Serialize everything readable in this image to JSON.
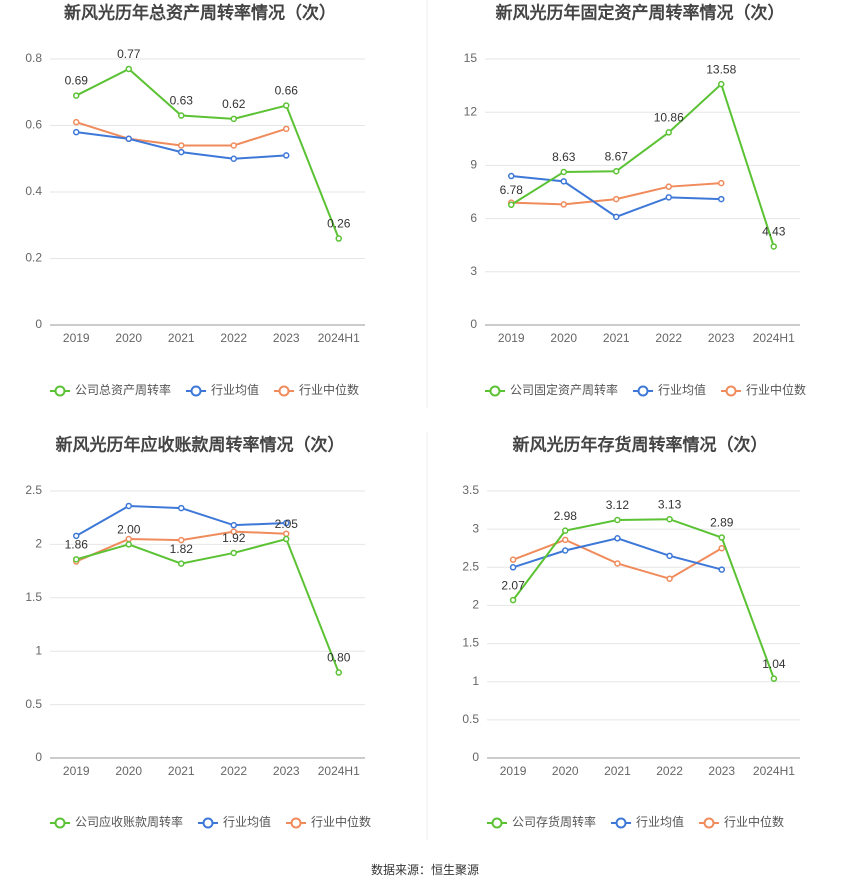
{
  "chart_data": [
    {
      "type": "line",
      "title": "新风光历年总资产周转率情况（次）",
      "categories": [
        "2019",
        "2020",
        "2021",
        "2022",
        "2023",
        "2024H1"
      ],
      "ylim": [
        0,
        0.8
      ],
      "yticks": [
        0,
        0.2,
        0.4,
        0.6,
        0.8
      ],
      "grid": true,
      "series": [
        {
          "name": "公司总资产周转率",
          "color": "#5bc234",
          "values": [
            0.69,
            0.77,
            0.63,
            0.62,
            0.66,
            0.26
          ],
          "value_labels": [
            "0.69",
            "0.77",
            "0.63",
            "0.62",
            "0.66",
            "0.26"
          ]
        },
        {
          "name": "行业均值",
          "color": "#3d78d8",
          "values": [
            0.58,
            0.56,
            0.52,
            0.5,
            0.51,
            null
          ]
        },
        {
          "name": "行业中位数",
          "color": "#f08b5c",
          "values": [
            0.61,
            0.56,
            0.54,
            0.54,
            0.59,
            null
          ]
        }
      ]
    },
    {
      "type": "line",
      "title": "新风光历年固定资产周转率情况（次）",
      "categories": [
        "2019",
        "2020",
        "2021",
        "2022",
        "2023",
        "2024H1"
      ],
      "ylim": [
        0,
        15
      ],
      "yticks": [
        0,
        3,
        6,
        9,
        12,
        15
      ],
      "grid": true,
      "series": [
        {
          "name": "公司固定资产周转率",
          "color": "#5bc234",
          "values": [
            6.78,
            8.63,
            8.67,
            10.86,
            13.58,
            4.43
          ],
          "value_labels": [
            "6.78",
            "8.63",
            "8.67",
            "10.86",
            "13.58",
            "4.43"
          ]
        },
        {
          "name": "行业均值",
          "color": "#3d78d8",
          "values": [
            8.4,
            8.1,
            6.1,
            7.2,
            7.1,
            null
          ]
        },
        {
          "name": "行业中位数",
          "color": "#f08b5c",
          "values": [
            6.9,
            6.8,
            7.1,
            7.8,
            8.0,
            null
          ]
        }
      ]
    },
    {
      "type": "line",
      "title": "新风光历年应收账款周转率情况（次）",
      "categories": [
        "2019",
        "2020",
        "2021",
        "2022",
        "2023",
        "2024H1"
      ],
      "ylim": [
        0,
        2.5
      ],
      "yticks": [
        0,
        0.5,
        1,
        1.5,
        2,
        2.5
      ],
      "grid": true,
      "series": [
        {
          "name": "公司应收账款周转率",
          "color": "#5bc234",
          "values": [
            1.86,
            2.0,
            1.82,
            1.92,
            2.05,
            0.8
          ],
          "value_labels": [
            "1.86",
            "2.00",
            "1.82",
            "1.92",
            "2.05",
            "0.80"
          ]
        },
        {
          "name": "行业均值",
          "color": "#3d78d8",
          "values": [
            2.08,
            2.36,
            2.34,
            2.18,
            2.2,
            null
          ]
        },
        {
          "name": "行业中位数",
          "color": "#f08b5c",
          "values": [
            1.84,
            2.05,
            2.04,
            2.12,
            2.1,
            null
          ]
        }
      ]
    },
    {
      "type": "line",
      "title": "新风光历年存货周转率情况（次）",
      "categories": [
        "2019",
        "2020",
        "2021",
        "2022",
        "2023",
        "2024H1"
      ],
      "ylim": [
        0,
        3.5
      ],
      "yticks": [
        0,
        0.5,
        1,
        1.5,
        2,
        2.5,
        3,
        3.5
      ],
      "grid": true,
      "series": [
        {
          "name": "公司存货周转率",
          "color": "#5bc234",
          "values": [
            2.07,
            2.98,
            3.12,
            3.13,
            2.89,
            1.04
          ],
          "value_labels": [
            "2.07",
            "2.98",
            "3.12",
            "3.13",
            "2.89",
            "1.04"
          ]
        },
        {
          "name": "行业均值",
          "color": "#3d78d8",
          "values": [
            2.5,
            2.72,
            2.88,
            2.65,
            2.47,
            null
          ]
        },
        {
          "name": "行业中位数",
          "color": "#f08b5c",
          "values": [
            2.6,
            2.86,
            2.55,
            2.35,
            2.75,
            null
          ]
        }
      ]
    }
  ],
  "source": "数据来源：恒生聚源"
}
